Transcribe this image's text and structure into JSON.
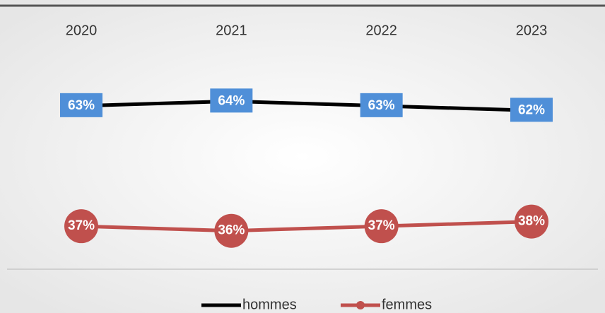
{
  "chart_data": {
    "type": "line",
    "categories": [
      "2020",
      "2021",
      "2022",
      "2023"
    ],
    "series": [
      {
        "name": "hommes",
        "color": "#000000",
        "label_color": "#4f8fd8",
        "values": [
          63,
          64,
          63,
          62
        ],
        "value_labels": [
          "63%",
          "64%",
          "63%",
          "62%"
        ]
      },
      {
        "name": "femmes",
        "color": "#c0504d",
        "marker": "circle",
        "values": [
          37,
          36,
          37,
          38
        ],
        "value_labels": [
          "37%",
          "36%",
          "37%",
          "38%"
        ]
      }
    ],
    "ylim": [
      30,
      70
    ]
  }
}
